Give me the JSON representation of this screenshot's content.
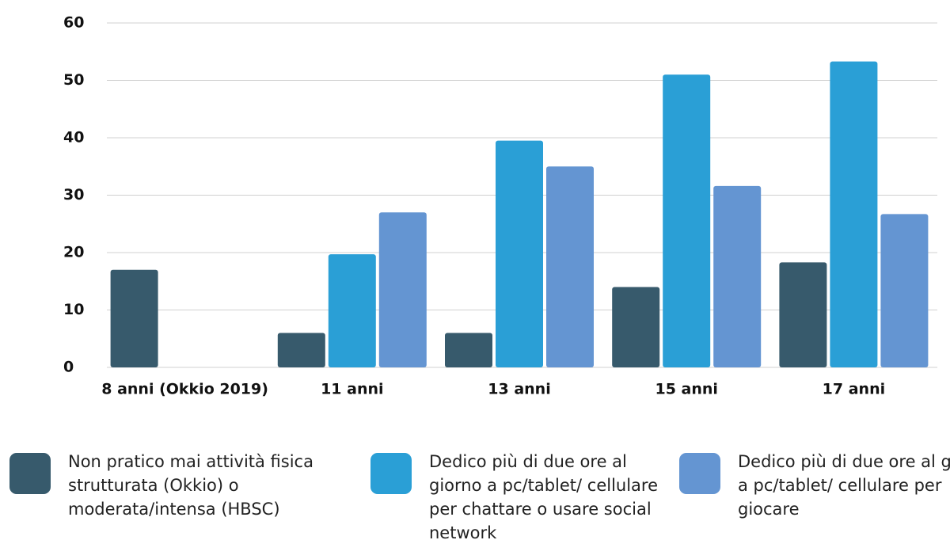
{
  "chart_data": {
    "type": "bar",
    "categories": [
      "8 anni (Okkio 2019)",
      "11 anni",
      "13 anni",
      "15 anni",
      "17 anni"
    ],
    "series": [
      {
        "name": "Non pratico mai attività fisica  strutturata (Okkio) o moderata/intensa (HBSC)",
        "color": "#375a6c",
        "values": [
          17,
          6,
          6,
          14,
          18.3
        ]
      },
      {
        "name": "Dedico più di due ore al giorno a pc/tablet/ cellulare per chattare o usare social network",
        "color": "#2a9fd6",
        "values": [
          null,
          19.7,
          39.5,
          51,
          53.3
        ]
      },
      {
        "name": "Dedico più di due ore al giorno a pc/tablet/ cellulare per giocare",
        "color": "#6495d2",
        "values": [
          null,
          27,
          35,
          31.6,
          26.7
        ]
      }
    ],
    "ylim": [
      0,
      60
    ],
    "yticks": [
      0,
      10,
      20,
      30,
      40,
      50,
      60
    ],
    "grid": true,
    "legend": "bottom"
  }
}
